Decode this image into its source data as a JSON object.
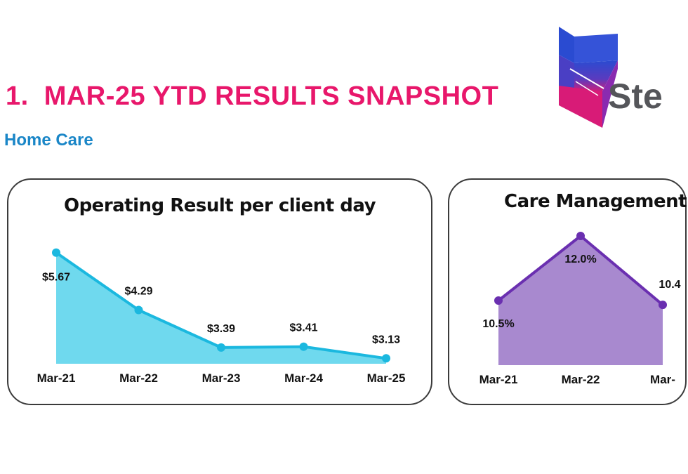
{
  "header": {
    "number": "1.",
    "title": "MAR-25 YTD RESULTS SNAPSHOT",
    "subtitle": "Home Care",
    "logo_text": "Ste"
  },
  "colors": {
    "title": "#e8176b",
    "subtitle": "#1a86c7",
    "chart1_fill": "#6fd9ee",
    "chart1_line": "#1bb8df",
    "chart2_fill": "#a889cf",
    "chart2_line": "#6a2fb0"
  },
  "chart_data": [
    {
      "type": "area",
      "title": "Operating Result per client day",
      "categories": [
        "Mar-21",
        "Mar-22",
        "Mar-23",
        "Mar-24",
        "Mar-25"
      ],
      "values": [
        5.67,
        4.29,
        3.39,
        3.41,
        3.13
      ],
      "labels": [
        "$5.67",
        "$4.29",
        "$3.39",
        "$3.41",
        "$3.13"
      ],
      "ylim": [
        3.0,
        5.8
      ],
      "grid": false,
      "legend": "none"
    },
    {
      "type": "area",
      "title": "Care Management",
      "categories": [
        "Mar-21",
        "Mar-22",
        "Mar-"
      ],
      "values": [
        10.5,
        12.0,
        10.4
      ],
      "labels": [
        "10.5%",
        "12.0%",
        "10.4"
      ],
      "ylim": [
        9.0,
        12.0
      ],
      "grid": false,
      "legend": "none"
    }
  ]
}
